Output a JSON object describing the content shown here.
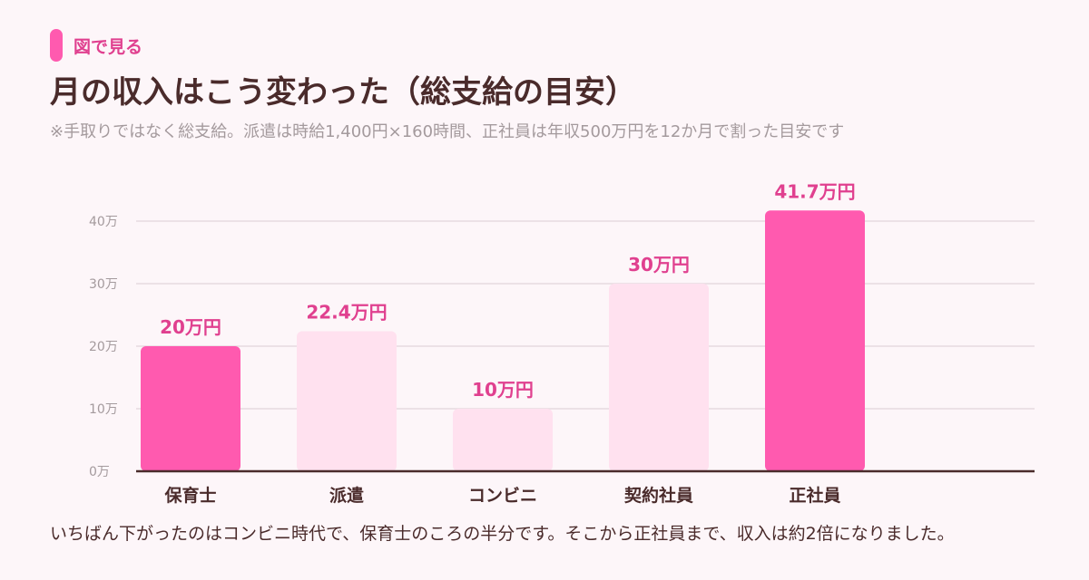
{
  "tag": {
    "label": "図で見る"
  },
  "title": "月の収入はこう変わった（総支給の目安）",
  "subtitle": "※手取りではなく総支給。派遣は時給1,400円×160時間、正社員は年収500万円を12か月で割った目安です",
  "caption": "いちばん下がったのはコンビニ時代で、保育士のころの半分です。そこから正社員まで、収入は約2倍になりました。",
  "colors": {
    "highlight": "#ff5aaf",
    "muted": "#ffe1ef",
    "label": "#e0408f",
    "axis": "#4a2b2b",
    "grid": "#e6dadf",
    "tick": "#a49a9d"
  },
  "chart_data": {
    "type": "bar",
    "categories": [
      "保育士",
      "派遣",
      "コンビニ",
      "契約社員",
      "正社員"
    ],
    "values": [
      20,
      22.4,
      10,
      30,
      41.7
    ],
    "data_labels": [
      "20万円",
      "22.4万円",
      "10万円",
      "30万円",
      "41.7万円"
    ],
    "highlighted": [
      true,
      false,
      false,
      false,
      true
    ],
    "yticks": [
      0,
      10,
      20,
      30,
      40
    ],
    "ytick_labels": [
      "0万",
      "10万",
      "20万",
      "30万",
      "40万"
    ],
    "ylim": [
      0,
      40
    ],
    "grid": true
  }
}
